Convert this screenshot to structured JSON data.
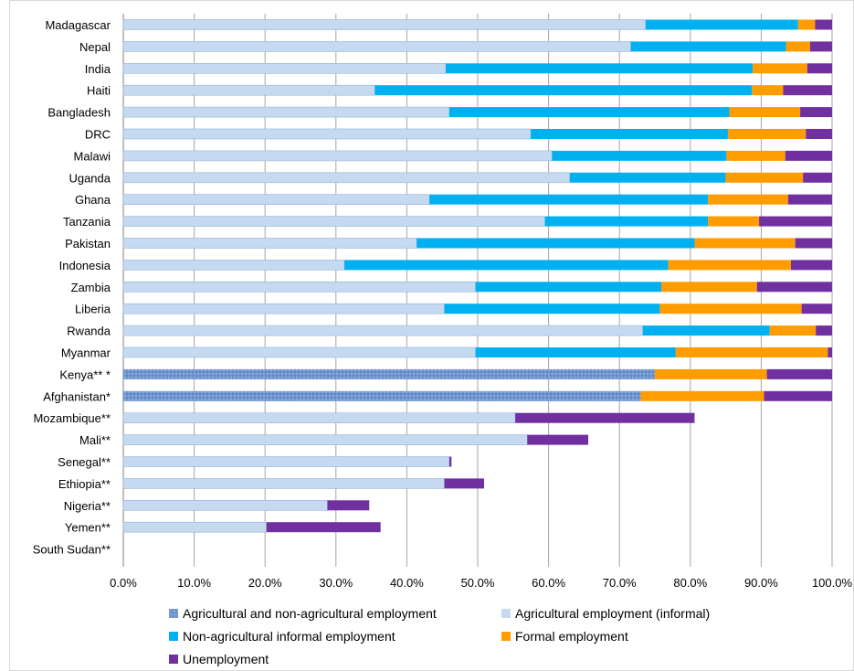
{
  "chart_data": {
    "type": "bar",
    "orientation": "horizontal",
    "stacked": true,
    "title": "",
    "xlabel": "",
    "ylabel": "",
    "xlim": [
      0,
      1
    ],
    "x_ticks": [
      "0.0%",
      "10.0%",
      "20.0%",
      "30.0%",
      "40.0%",
      "50.0%",
      "60.0%",
      "70.0%",
      "80.0%",
      "90.0%",
      "100.0%"
    ],
    "grid": "vertical",
    "legend_position": "bottom",
    "categories": [
      "Madagascar",
      "Nepal",
      "India",
      "Haiti",
      "Bangladesh",
      "DRC",
      "Malawi",
      "Uganda",
      "Ghana",
      "Tanzania",
      "Pakistan",
      "Indonesia",
      "Zambia",
      "Liberia",
      "Rwanda",
      "Myanmar",
      "Kenya** *",
      "Afghanistan*",
      "Mozambique**",
      "Mali**",
      "Senegal**",
      "Ethiopia**",
      "Nigeria**",
      "Yemen**",
      "South Sudan**"
    ],
    "series": [
      {
        "name": "Agricultural and non-agricultural employment",
        "color": "#6f95cf",
        "values": [
          0,
          0,
          0,
          0,
          0,
          0,
          0,
          0,
          0,
          0,
          0,
          0,
          0,
          0,
          0,
          0,
          0.75,
          0.73,
          0,
          0,
          0,
          0,
          0,
          0,
          0
        ]
      },
      {
        "name": "Agricultural employment (informal)",
        "color": "#c5d9f1",
        "values": [
          0.737,
          0.716,
          0.455,
          0.355,
          0.46,
          0.575,
          0.605,
          0.63,
          0.432,
          0.595,
          0.414,
          0.312,
          0.497,
          0.453,
          0.733,
          0.497,
          0,
          0,
          0.553,
          0.57,
          0.46,
          0.453,
          0.288,
          0.202,
          0
        ]
      },
      {
        "name": "Non-agricultural informal employment",
        "color": "#00b0f0",
        "values": [
          0.215,
          0.219,
          0.433,
          0.532,
          0.395,
          0.278,
          0.246,
          0.22,
          0.393,
          0.23,
          0.392,
          0.457,
          0.262,
          0.304,
          0.179,
          0.282,
          0,
          0,
          0,
          0,
          0,
          0,
          0,
          0,
          0
        ]
      },
      {
        "name": "Formal employment",
        "color": "#ff9c00",
        "values": [
          0.024,
          0.034,
          0.077,
          0.044,
          0.1,
          0.11,
          0.083,
          0.109,
          0.113,
          0.072,
          0.142,
          0.173,
          0.135,
          0.2,
          0.065,
          0.215,
          0.158,
          0.174,
          0,
          0,
          0,
          0,
          0,
          0,
          0
        ]
      },
      {
        "name": "Unemployment",
        "color": "#7030a0",
        "values": [
          0.024,
          0.031,
          0.035,
          0.069,
          0.045,
          0.037,
          0.066,
          0.041,
          0.062,
          0.103,
          0.052,
          0.058,
          0.106,
          0.043,
          0.023,
          0.006,
          0.092,
          0.096,
          0.253,
          0.086,
          0.003,
          0.056,
          0.059,
          0.161,
          0
        ]
      }
    ]
  },
  "legend": {
    "items": [
      {
        "label": "Agricultural and non-agricultural employment",
        "color": "#6f95cf"
      },
      {
        "label": "Agricultural employment (informal)",
        "color": "#c5d9f1"
      },
      {
        "label": "Non-agricultural informal employment",
        "color": "#00b0f0"
      },
      {
        "label": "Formal employment",
        "color": "#ff9c00"
      },
      {
        "label": "Unemployment",
        "color": "#7030a0"
      }
    ]
  }
}
